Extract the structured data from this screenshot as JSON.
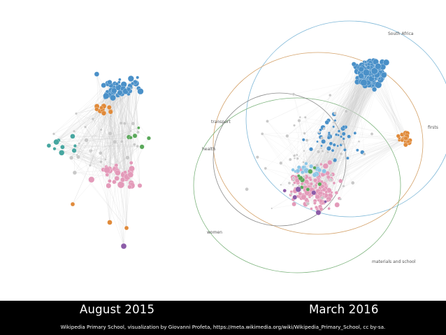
{
  "captions": {
    "left": "August 2015",
    "right": "March 2016"
  },
  "credit": "Wikipedia Primary School, visualization by Giovanni Profeta, https://meta.wikimedia.org/wiki/Wikipedia_Primary_School, cc by-sa.",
  "right_graph": {
    "cluster_labels": {
      "south_africa": "South Africa",
      "transport": "transport",
      "firsts": "firsts",
      "health": "health",
      "women": "women",
      "materials_and_school": "materials and school"
    }
  },
  "colors": {
    "blue": "#4a90c8",
    "pink": "#e39ab9",
    "orange": "#e08a3a",
    "teal": "#46a6a0",
    "green": "#5aa85a",
    "purple": "#8c5ca8",
    "light_blue": "#8cc6e6",
    "gray_node": "#c8c8c8",
    "edge": "#cfcfcf",
    "ring_blue": "#7fb8d8",
    "ring_orange": "#d4a26a",
    "ring_gray": "#8a8a8a",
    "ring_green": "#7cb37c"
  }
}
